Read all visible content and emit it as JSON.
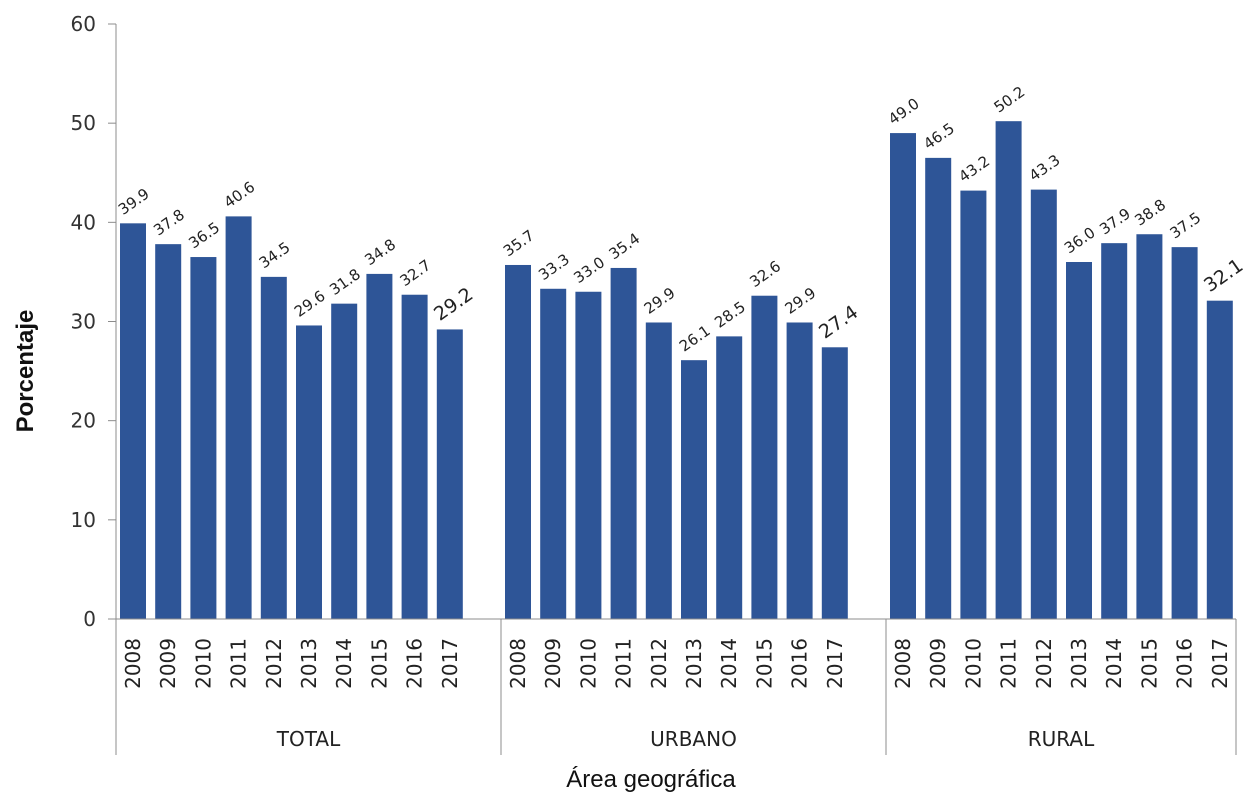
{
  "chart_data": {
    "type": "bar",
    "ylabel": "Porcentaje",
    "xlabel": "Área geográfica",
    "ylim": [
      0,
      60
    ],
    "yticks": [
      0,
      10,
      20,
      30,
      40,
      50,
      60
    ],
    "grid": false,
    "legend": "none",
    "bar_color": "#2e5597",
    "emphasized_label": "2017",
    "groups": [
      {
        "name": "TOTAL",
        "categories": [
          "2008",
          "2009",
          "2010",
          "2011",
          "2012",
          "2013",
          "2014",
          "2015",
          "2016",
          "2017"
        ],
        "values": [
          39.9,
          37.8,
          36.5,
          40.6,
          34.5,
          29.6,
          31.8,
          34.8,
          32.7,
          29.2
        ]
      },
      {
        "name": "URBANO",
        "categories": [
          "2008",
          "2009",
          "2010",
          "2011",
          "2012",
          "2013",
          "2014",
          "2015",
          "2016",
          "2017"
        ],
        "values": [
          35.7,
          33.3,
          33.0,
          35.4,
          29.9,
          26.1,
          28.5,
          32.6,
          29.9,
          27.4
        ]
      },
      {
        "name": "RURAL",
        "categories": [
          "2008",
          "2009",
          "2010",
          "2011",
          "2012",
          "2013",
          "2014",
          "2015",
          "2016",
          "2017"
        ],
        "values": [
          49.0,
          46.5,
          43.2,
          50.2,
          43.3,
          36.0,
          37.9,
          38.8,
          37.5,
          32.1
        ]
      }
    ]
  }
}
